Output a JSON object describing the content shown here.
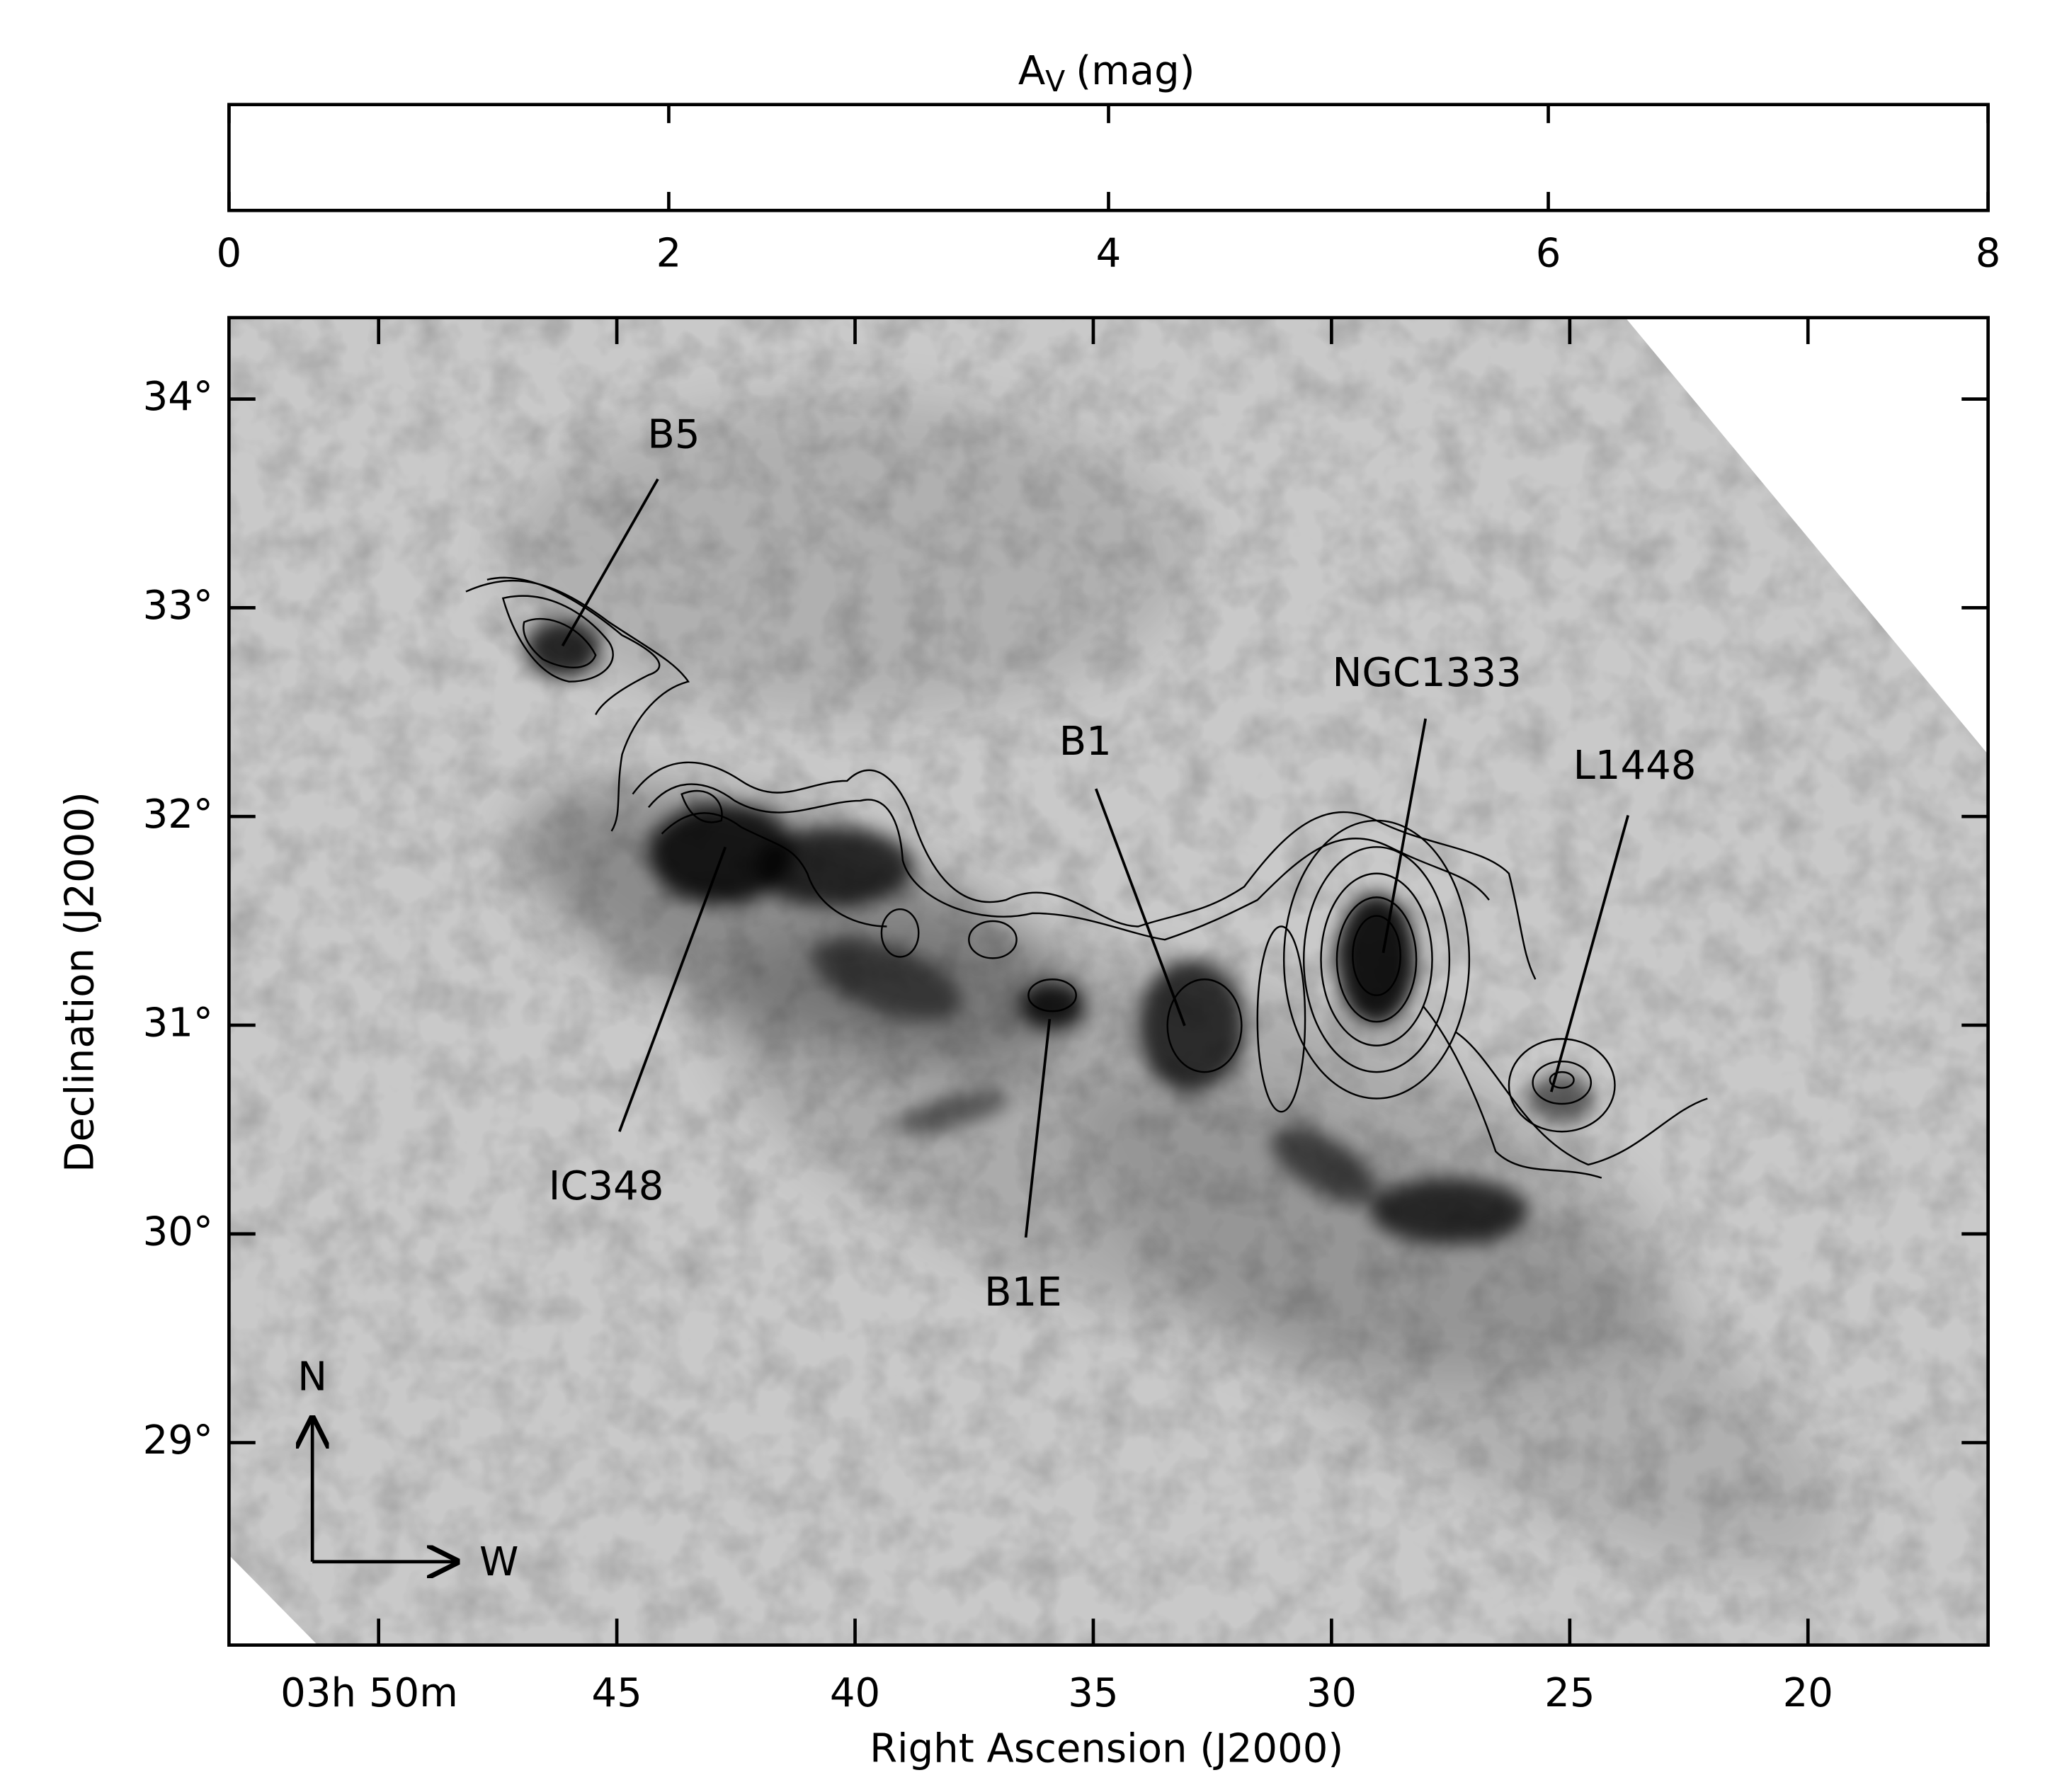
{
  "chart_data": {
    "type": "image",
    "colorbar": {
      "label": {
        "base": "A",
        "sub": "V",
        "rest": "(mag)"
      },
      "lim": [
        0,
        8
      ],
      "ticks": [
        0,
        2,
        4,
        6,
        8
      ],
      "colors": [
        "#ffffff",
        "#000000"
      ]
    },
    "xlabel": "Right Ascension (J2000)",
    "ylabel": "Declination (J2000)",
    "xlim": [
      53.14,
      16.22
    ],
    "xticks": [
      {
        "value": 50,
        "label": "03h 50m"
      },
      45,
      40,
      35,
      30,
      25,
      20
    ],
    "ylim": [
      28.03,
      34.39
    ],
    "yticks": [
      {
        "value": 29,
        "label": "29°"
      },
      {
        "value": 30,
        "label": "30°"
      },
      {
        "value": 31,
        "label": "31°"
      },
      {
        "value": 32,
        "label": "32°"
      },
      {
        "value": 33,
        "label": "33°"
      },
      {
        "value": 34,
        "label": "34°"
      }
    ],
    "annotations": [
      "B5",
      "IC348",
      "B1",
      "NGC1333",
      "L1448",
      "B1E"
    ],
    "compass": {
      "north": "N",
      "west": "W"
    }
  }
}
